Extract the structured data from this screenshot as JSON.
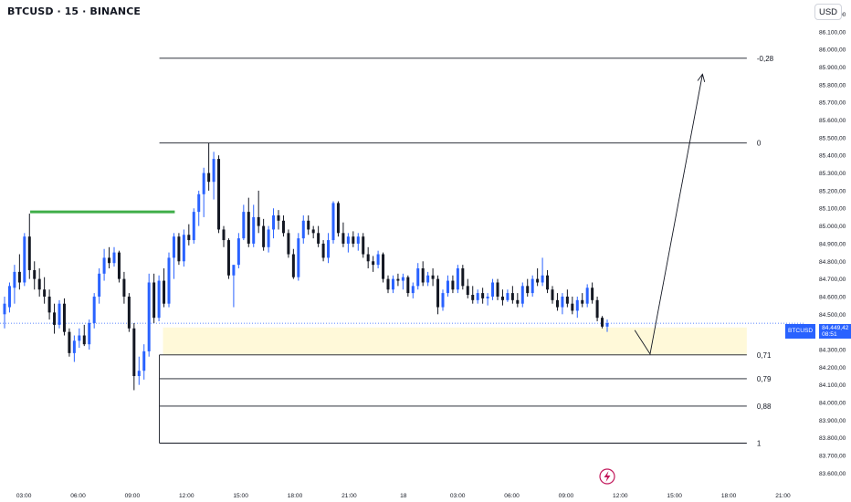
{
  "header": {
    "title": "BTCUSD · 15 · BINANCE",
    "currency_button": "USD"
  },
  "price_tag": {
    "symbol": "BTCUSD",
    "price": "84.449,42",
    "countdown": "08:51"
  },
  "colors": {
    "up": "#2962ff",
    "down": "#131722",
    "level": "#3fae49",
    "zone": "#fff9d9",
    "line": "#131722",
    "current_price": "#2962ff"
  },
  "chart_data": {
    "type": "candlestick",
    "title": "BTCUSD · 15 · BINANCE",
    "currency": "USD",
    "y_axis_labels": [
      "86.200,00",
      "86.100,00",
      "86.000,00",
      "85.900,00",
      "85.800,00",
      "85.700,00",
      "85.600,00",
      "85.500,00",
      "85.400,00",
      "85.300,00",
      "85.200,00",
      "85.100,00",
      "85.000,00",
      "84.900,00",
      "84.800,00",
      "84.700,00",
      "84.600,00",
      "84.500,00",
      "84.300,00",
      "84.200,00",
      "84.100,00",
      "84.000,00",
      "83.900,00",
      "83.800,00",
      "83.700,00",
      "83.600,00"
    ],
    "y_axis_ticks": [
      86200,
      86100,
      86000,
      85900,
      85800,
      85700,
      85600,
      85500,
      85400,
      85300,
      85200,
      85100,
      85000,
      84900,
      84800,
      84700,
      84600,
      84500,
      84300,
      84200,
      84100,
      84000,
      83900,
      83800,
      83700,
      83600
    ],
    "x_axis_labels": [
      "03:00",
      "06:00",
      "09:00",
      "12:00",
      "15:00",
      "18:00",
      "21:00",
      "18",
      "03:00",
      "06:00",
      "09:00",
      "12:00",
      "15:00",
      "18:00",
      "21:00"
    ],
    "x_axis_hours": [
      3,
      6,
      9,
      12,
      15,
      18,
      21,
      24,
      27,
      30,
      33,
      36,
      39,
      42,
      45
    ],
    "ylim": [
      83540,
      86280
    ],
    "xlim_hours": [
      1.68,
      46.24
    ],
    "current_price": 84449.42,
    "current_price_label": "84.449,42",
    "fib_levels": [
      {
        "label": "-0,28",
        "price": 85950,
        "start_hour": 10.5
      },
      {
        "label": "0",
        "price": 85470,
        "start_hour": 10.5
      },
      {
        "label": "0,71",
        "price": 84270,
        "start_hour": 10.5
      },
      {
        "label": "0,79",
        "price": 84135,
        "start_hour": 10.5
      },
      {
        "label": "0,88",
        "price": 83980,
        "start_hour": 10.5
      },
      {
        "label": "1",
        "price": 83770,
        "start_hour": 10.5
      }
    ],
    "fib_end_hour": 43.0,
    "zone": {
      "top": 84425,
      "bottom": 84270,
      "start_hour": 10.7,
      "end_hour": 43.0
    },
    "resistance_level": {
      "price": 85080,
      "start_hour": 3.35,
      "end_hour": 11.35
    },
    "projection_path": [
      {
        "hour": 36.8,
        "price": 84410
      },
      {
        "hour": 37.65,
        "price": 84275
      },
      {
        "hour": 40.55,
        "price": 85860
      }
    ],
    "candles": [
      {
        "o": 84500,
        "h": 84600,
        "l": 84420,
        "c": 84560
      },
      {
        "o": 84540,
        "h": 84680,
        "l": 84510,
        "c": 84660
      },
      {
        "o": 84650,
        "h": 84780,
        "l": 84560,
        "c": 84740
      },
      {
        "o": 84740,
        "h": 84840,
        "l": 84640,
        "c": 84680
      },
      {
        "o": 84680,
        "h": 84960,
        "l": 84660,
        "c": 84940
      },
      {
        "o": 84940,
        "h": 85070,
        "l": 84700,
        "c": 84750
      },
      {
        "o": 84750,
        "h": 84800,
        "l": 84640,
        "c": 84700
      },
      {
        "o": 84700,
        "h": 84760,
        "l": 84600,
        "c": 84640
      },
      {
        "o": 84640,
        "h": 84710,
        "l": 84560,
        "c": 84600
      },
      {
        "o": 84600,
        "h": 84640,
        "l": 84470,
        "c": 84510
      },
      {
        "o": 84510,
        "h": 84560,
        "l": 84390,
        "c": 84440
      },
      {
        "o": 84440,
        "h": 84580,
        "l": 84420,
        "c": 84560
      },
      {
        "o": 84560,
        "h": 84590,
        "l": 84380,
        "c": 84400
      },
      {
        "o": 84400,
        "h": 84420,
        "l": 84260,
        "c": 84280
      },
      {
        "o": 84280,
        "h": 84380,
        "l": 84230,
        "c": 84350
      },
      {
        "o": 84350,
        "h": 84420,
        "l": 84310,
        "c": 84380
      },
      {
        "o": 84380,
        "h": 84440,
        "l": 84320,
        "c": 84330
      },
      {
        "o": 84330,
        "h": 84470,
        "l": 84300,
        "c": 84450
      },
      {
        "o": 84450,
        "h": 84620,
        "l": 84420,
        "c": 84600
      },
      {
        "o": 84600,
        "h": 84760,
        "l": 84560,
        "c": 84730
      },
      {
        "o": 84730,
        "h": 84870,
        "l": 84690,
        "c": 84820
      },
      {
        "o": 84820,
        "h": 84880,
        "l": 84760,
        "c": 84790
      },
      {
        "o": 84790,
        "h": 84880,
        "l": 84770,
        "c": 84850
      },
      {
        "o": 84850,
        "h": 84860,
        "l": 84680,
        "c": 84700
      },
      {
        "o": 84700,
        "h": 84740,
        "l": 84560,
        "c": 84600
      },
      {
        "o": 84600,
        "h": 84620,
        "l": 84400,
        "c": 84420
      },
      {
        "o": 84420,
        "h": 84450,
        "l": 84070,
        "c": 84150
      },
      {
        "o": 84150,
        "h": 84260,
        "l": 84100,
        "c": 84180
      },
      {
        "o": 84180,
        "h": 84330,
        "l": 84130,
        "c": 84290
      },
      {
        "o": 84290,
        "h": 84730,
        "l": 84260,
        "c": 84680
      },
      {
        "o": 84680,
        "h": 84730,
        "l": 84450,
        "c": 84480
      },
      {
        "o": 84480,
        "h": 84720,
        "l": 84460,
        "c": 84690
      },
      {
        "o": 84690,
        "h": 84760,
        "l": 84540,
        "c": 84560
      },
      {
        "o": 84560,
        "h": 84850,
        "l": 84540,
        "c": 84820
      },
      {
        "o": 84820,
        "h": 84960,
        "l": 84700,
        "c": 84940
      },
      {
        "o": 84940,
        "h": 84960,
        "l": 84780,
        "c": 84800
      },
      {
        "o": 84800,
        "h": 84980,
        "l": 84770,
        "c": 84950
      },
      {
        "o": 84950,
        "h": 85010,
        "l": 84890,
        "c": 84920
      },
      {
        "o": 84920,
        "h": 85100,
        "l": 84900,
        "c": 85080
      },
      {
        "o": 85080,
        "h": 85200,
        "l": 85000,
        "c": 85180
      },
      {
        "o": 85180,
        "h": 85330,
        "l": 85050,
        "c": 85300
      },
      {
        "o": 85300,
        "h": 85470,
        "l": 85200,
        "c": 85250
      },
      {
        "o": 85250,
        "h": 85420,
        "l": 85150,
        "c": 85380
      },
      {
        "o": 85380,
        "h": 85400,
        "l": 84960,
        "c": 84980
      },
      {
        "o": 84980,
        "h": 85000,
        "l": 84880,
        "c": 84920
      },
      {
        "o": 84920,
        "h": 84930,
        "l": 84700,
        "c": 84720
      },
      {
        "o": 84720,
        "h": 84760,
        "l": 84540,
        "c": 84780
      },
      {
        "o": 84780,
        "h": 84960,
        "l": 84760,
        "c": 84930
      },
      {
        "o": 84930,
        "h": 85120,
        "l": 84920,
        "c": 85080
      },
      {
        "o": 85080,
        "h": 85160,
        "l": 84880,
        "c": 84900
      },
      {
        "o": 84900,
        "h": 85120,
        "l": 84880,
        "c": 85050
      },
      {
        "o": 85050,
        "h": 85200,
        "l": 84960,
        "c": 85000
      },
      {
        "o": 85000,
        "h": 85040,
        "l": 84860,
        "c": 84880
      },
      {
        "o": 84880,
        "h": 85000,
        "l": 84850,
        "c": 84980
      },
      {
        "o": 84980,
        "h": 85100,
        "l": 84930,
        "c": 85060
      },
      {
        "o": 85060,
        "h": 85090,
        "l": 84980,
        "c": 85030
      },
      {
        "o": 85030,
        "h": 85060,
        "l": 84940,
        "c": 84960
      },
      {
        "o": 84960,
        "h": 84980,
        "l": 84820,
        "c": 84840
      },
      {
        "o": 84840,
        "h": 84870,
        "l": 84700,
        "c": 84710
      },
      {
        "o": 84710,
        "h": 84960,
        "l": 84690,
        "c": 84930
      },
      {
        "o": 84930,
        "h": 85060,
        "l": 84900,
        "c": 85030
      },
      {
        "o": 85030,
        "h": 85060,
        "l": 84950,
        "c": 84980
      },
      {
        "o": 84980,
        "h": 85000,
        "l": 84930,
        "c": 84960
      },
      {
        "o": 84960,
        "h": 85000,
        "l": 84880,
        "c": 84900
      },
      {
        "o": 84900,
        "h": 84920,
        "l": 84800,
        "c": 84820
      },
      {
        "o": 84820,
        "h": 84960,
        "l": 84790,
        "c": 84920
      },
      {
        "o": 84920,
        "h": 85140,
        "l": 84900,
        "c": 85130
      },
      {
        "o": 85130,
        "h": 85140,
        "l": 84940,
        "c": 84960
      },
      {
        "o": 84960,
        "h": 85020,
        "l": 84880,
        "c": 84900
      },
      {
        "o": 84900,
        "h": 84960,
        "l": 84850,
        "c": 84940
      },
      {
        "o": 84940,
        "h": 84970,
        "l": 84880,
        "c": 84900
      },
      {
        "o": 84900,
        "h": 84960,
        "l": 84860,
        "c": 84940
      },
      {
        "o": 84940,
        "h": 84960,
        "l": 84820,
        "c": 84840
      },
      {
        "o": 84840,
        "h": 84880,
        "l": 84760,
        "c": 84800
      },
      {
        "o": 84800,
        "h": 84830,
        "l": 84740,
        "c": 84780
      },
      {
        "o": 84780,
        "h": 84860,
        "l": 84760,
        "c": 84840
      },
      {
        "o": 84840,
        "h": 84850,
        "l": 84680,
        "c": 84700
      },
      {
        "o": 84700,
        "h": 84720,
        "l": 84620,
        "c": 84640
      },
      {
        "o": 84640,
        "h": 84720,
        "l": 84620,
        "c": 84700
      },
      {
        "o": 84700,
        "h": 84730,
        "l": 84660,
        "c": 84690
      },
      {
        "o": 84690,
        "h": 84730,
        "l": 84640,
        "c": 84710
      },
      {
        "o": 84710,
        "h": 84720,
        "l": 84600,
        "c": 84620
      },
      {
        "o": 84620,
        "h": 84680,
        "l": 84590,
        "c": 84660
      },
      {
        "o": 84660,
        "h": 84790,
        "l": 84640,
        "c": 84760
      },
      {
        "o": 84760,
        "h": 84800,
        "l": 84660,
        "c": 84680
      },
      {
        "o": 84680,
        "h": 84740,
        "l": 84660,
        "c": 84720
      },
      {
        "o": 84720,
        "h": 84760,
        "l": 84660,
        "c": 84700
      },
      {
        "o": 84700,
        "h": 84720,
        "l": 84500,
        "c": 84540
      },
      {
        "o": 84540,
        "h": 84640,
        "l": 84520,
        "c": 84620
      },
      {
        "o": 84620,
        "h": 84720,
        "l": 84600,
        "c": 84690
      },
      {
        "o": 84690,
        "h": 84720,
        "l": 84620,
        "c": 84640
      },
      {
        "o": 84640,
        "h": 84780,
        "l": 84620,
        "c": 84760
      },
      {
        "o": 84760,
        "h": 84780,
        "l": 84640,
        "c": 84660
      },
      {
        "o": 84660,
        "h": 84700,
        "l": 84590,
        "c": 84610
      },
      {
        "o": 84610,
        "h": 84660,
        "l": 84560,
        "c": 84580
      },
      {
        "o": 84580,
        "h": 84640,
        "l": 84560,
        "c": 84620
      },
      {
        "o": 84620,
        "h": 84650,
        "l": 84560,
        "c": 84590
      },
      {
        "o": 84590,
        "h": 84620,
        "l": 84550,
        "c": 84600
      },
      {
        "o": 84600,
        "h": 84700,
        "l": 84580,
        "c": 84680
      },
      {
        "o": 84680,
        "h": 84700,
        "l": 84580,
        "c": 84600
      },
      {
        "o": 84600,
        "h": 84640,
        "l": 84550,
        "c": 84580
      },
      {
        "o": 84580,
        "h": 84640,
        "l": 84570,
        "c": 84620
      },
      {
        "o": 84620,
        "h": 84660,
        "l": 84560,
        "c": 84580
      },
      {
        "o": 84580,
        "h": 84620,
        "l": 84540,
        "c": 84560
      },
      {
        "o": 84560,
        "h": 84680,
        "l": 84540,
        "c": 84660
      },
      {
        "o": 84660,
        "h": 84700,
        "l": 84600,
        "c": 84620
      },
      {
        "o": 84620,
        "h": 84720,
        "l": 84600,
        "c": 84700
      },
      {
        "o": 84700,
        "h": 84760,
        "l": 84660,
        "c": 84680
      },
      {
        "o": 84680,
        "h": 84820,
        "l": 84660,
        "c": 84720
      },
      {
        "o": 84720,
        "h": 84750,
        "l": 84620,
        "c": 84640
      },
      {
        "o": 84640,
        "h": 84660,
        "l": 84560,
        "c": 84580
      },
      {
        "o": 84580,
        "h": 84620,
        "l": 84520,
        "c": 84540
      },
      {
        "o": 84540,
        "h": 84620,
        "l": 84500,
        "c": 84600
      },
      {
        "o": 84600,
        "h": 84640,
        "l": 84540,
        "c": 84560
      },
      {
        "o": 84560,
        "h": 84600,
        "l": 84500,
        "c": 84520
      },
      {
        "o": 84520,
        "h": 84600,
        "l": 84480,
        "c": 84580
      },
      {
        "o": 84580,
        "h": 84620,
        "l": 84540,
        "c": 84560
      },
      {
        "o": 84560,
        "h": 84670,
        "l": 84540,
        "c": 84650
      },
      {
        "o": 84650,
        "h": 84680,
        "l": 84560,
        "c": 84580
      },
      {
        "o": 84580,
        "h": 84600,
        "l": 84460,
        "c": 84480
      },
      {
        "o": 84480,
        "h": 84490,
        "l": 84420,
        "c": 84430
      },
      {
        "o": 84430,
        "h": 84470,
        "l": 84400,
        "c": 84450
      }
    ]
  }
}
